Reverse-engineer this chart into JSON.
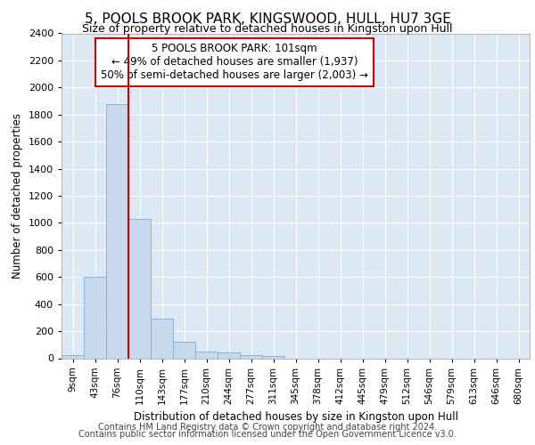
{
  "title": "5, POOLS BROOK PARK, KINGSWOOD, HULL, HU7 3GE",
  "subtitle": "Size of property relative to detached houses in Kingston upon Hull",
  "xlabel": "Distribution of detached houses by size in Kingston upon Hull",
  "ylabel": "Number of detached properties",
  "bar_color": "#c8d8ee",
  "bar_edge_color": "#7aafd4",
  "background_color": "#dde8f5",
  "grid_color": "#ffffff",
  "categories": [
    "9sqm",
    "43sqm",
    "76sqm",
    "110sqm",
    "143sqm",
    "177sqm",
    "210sqm",
    "244sqm",
    "277sqm",
    "311sqm",
    "345sqm",
    "378sqm",
    "412sqm",
    "445sqm",
    "479sqm",
    "512sqm",
    "546sqm",
    "579sqm",
    "613sqm",
    "646sqm",
    "680sqm"
  ],
  "values": [
    20,
    600,
    1880,
    1030,
    290,
    120,
    50,
    40,
    25,
    15,
    0,
    0,
    0,
    0,
    0,
    0,
    0,
    0,
    0,
    0,
    0
  ],
  "property_line_x": 2.5,
  "property_line_color": "#cc0000",
  "annotation_line1": "5 POOLS BROOK PARK: 101sqm",
  "annotation_line2": "← 49% of detached houses are smaller (1,937)",
  "annotation_line3": "50% of semi-detached houses are larger (2,003) →",
  "annotation_box_color": "#cc0000",
  "ylim": [
    0,
    2400
  ],
  "yticks": [
    0,
    200,
    400,
    600,
    800,
    1000,
    1200,
    1400,
    1600,
    1800,
    2000,
    2200,
    2400
  ],
  "footer_line1": "Contains HM Land Registry data © Crown copyright and database right 2024.",
  "footer_line2": "Contains public sector information licensed under the Open Government Licence v3.0.",
  "title_fontsize": 11,
  "subtitle_fontsize": 9,
  "footer_fontsize": 7
}
